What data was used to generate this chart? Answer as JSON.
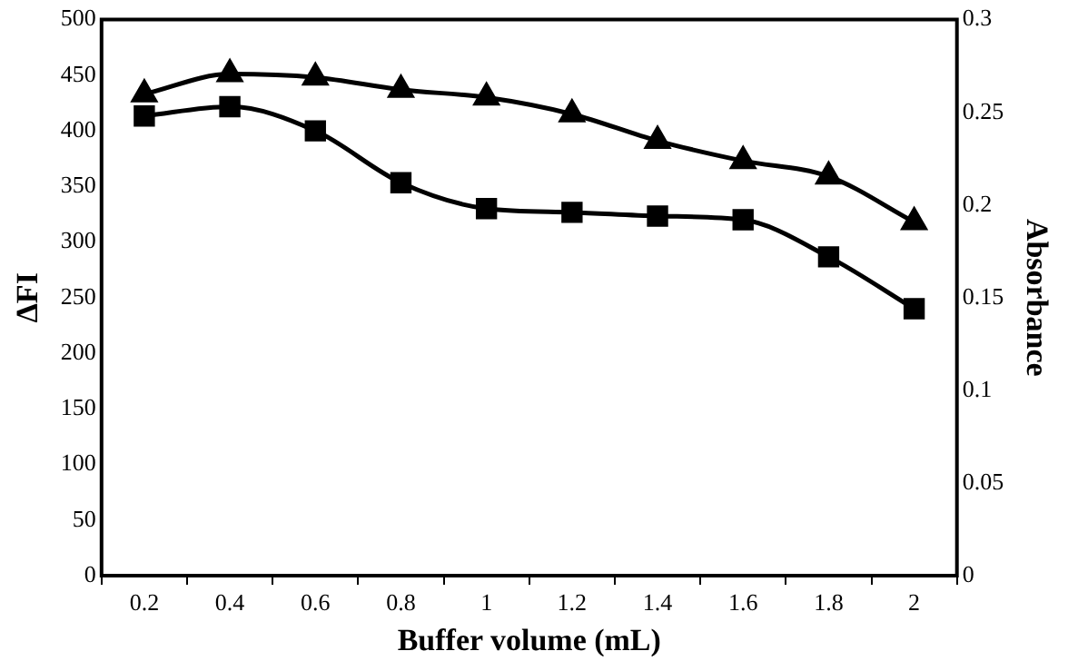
{
  "chart_data": {
    "type": "line",
    "xlabel": "Buffer volume (mL)",
    "ylabel": "ΔFI",
    "y2label": "Absorbance",
    "categories": [
      "0.2",
      "0.4",
      "0.6",
      "0.8",
      "1",
      "1.2",
      "1.4",
      "1.6",
      "1.8",
      "2"
    ],
    "series": [
      {
        "color": "#000000",
        "marker": "triangle",
        "values": [
          433,
          451,
          448,
          437,
          430,
          415,
          391,
          373,
          359,
          318
        ]
      },
      {
        "color": "#000000",
        "marker": "square",
        "axis": "y2",
        "values": [
          0.248,
          0.253,
          0.24,
          0.212,
          0.198,
          0.196,
          0.194,
          0.192,
          0.172,
          0.144
        ]
      }
    ],
    "ylim": [
      0,
      500
    ],
    "yticks": [
      0,
      50,
      100,
      150,
      200,
      250,
      300,
      350,
      400,
      450,
      500
    ],
    "y2lim": [
      0,
      0.3
    ],
    "y2ticks": [
      0,
      0.05,
      0.1,
      0.15,
      0.2,
      0.25,
      0.3
    ],
    "grid": false,
    "legend": false,
    "line_style": "solid"
  }
}
